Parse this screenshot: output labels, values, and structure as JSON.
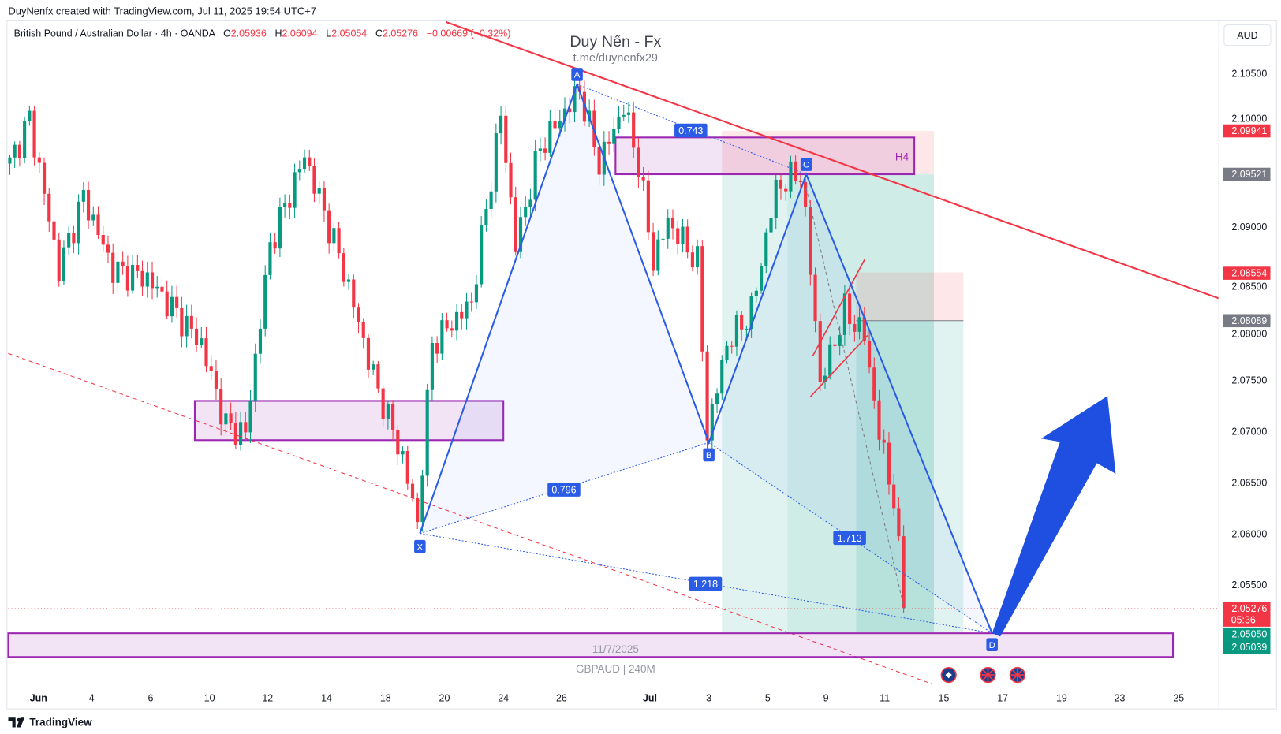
{
  "credit": "DuyNenfx created with TradingView.com, Jul 11, 2025 19:54 UTC+7",
  "legend": {
    "symbol": "British Pound / Australian Dollar · 4h · OANDA",
    "o_label": "O",
    "o": "2.05936",
    "h_label": "H",
    "h": "2.06094",
    "l_label": "L",
    "l": "2.05054",
    "c_label": "C",
    "c": "2.05276",
    "change": "−0.00669 (−0.32%)"
  },
  "currency_button": "AUD",
  "watermark": {
    "title": "Duy Nến - Fx",
    "link": "t.me/duynenfx29",
    "date": "11/7/2025",
    "symbol_tf": "GBPAUD | 240M"
  },
  "zone_labels": {
    "h4": "H4"
  },
  "pattern": {
    "points": {
      "X": "X",
      "A": "A",
      "B": "B",
      "C": "C",
      "D": "D"
    },
    "ratios": {
      "ac": "0.743",
      "xb": "0.796",
      "bd": "1.713",
      "xd": "1.218"
    }
  },
  "price_axis": {
    "ticks": [
      "2.10500",
      "2.10000",
      "2.09000",
      "2.08500",
      "2.08000",
      "2.07500",
      "2.07000",
      "2.06500",
      "2.06000",
      "2.05500"
    ],
    "labels": [
      {
        "value": "2.09941",
        "color": "#f23645"
      },
      {
        "value": "2.09521",
        "color": "#787b86"
      },
      {
        "value": "2.08554",
        "color": "#f23645"
      },
      {
        "value": "2.08089",
        "color": "#787b86"
      },
      {
        "value": "2.05276",
        "sub": "05:36",
        "color": "#f23645"
      },
      {
        "value": "2.05050",
        "color": "#089981"
      },
      {
        "value": "2.05039",
        "color": "#089981"
      }
    ]
  },
  "time_axis": [
    "Jun",
    "4",
    "6",
    "10",
    "12",
    "14",
    "18",
    "20",
    "24",
    "26",
    "Jul",
    "3",
    "5",
    "9",
    "11",
    "15",
    "17",
    "19",
    "23",
    "25"
  ],
  "branding": "TradingView",
  "colors": {
    "up": "#089981",
    "down": "#f23645",
    "pattern": "#2b5ce6",
    "zone": "#9c27b0"
  },
  "chart_data": {
    "type": "candlestick",
    "symbol": "GBPAUD",
    "timeframe": "4h",
    "ylim": [
      2.047,
      2.113
    ],
    "last_close": 2.05276,
    "close_waypoints_bar_price": [
      [
        0,
        2.0962
      ],
      [
        4,
        2.1006
      ],
      [
        10,
        2.0858
      ],
      [
        15,
        2.093
      ],
      [
        21,
        2.0858
      ],
      [
        28,
        2.085
      ],
      [
        39,
        2.0786
      ],
      [
        44,
        2.0706
      ],
      [
        48,
        2.0698
      ],
      [
        53,
        2.0882
      ],
      [
        60,
        2.097
      ],
      [
        68,
        2.0858
      ],
      [
        74,
        2.0754
      ],
      [
        80,
        2.0674
      ],
      [
        83,
        2.061
      ],
      [
        86,
        2.0786
      ],
      [
        94,
        2.0826
      ],
      [
        100,
        2.101
      ],
      [
        103,
        2.0882
      ],
      [
        108,
        2.0978
      ],
      [
        116,
        2.1034
      ],
      [
        120,
        2.0962
      ],
      [
        125,
        2.1018
      ],
      [
        128,
        2.0962
      ],
      [
        131,
        2.0866
      ],
      [
        134,
        2.0906
      ],
      [
        140,
        2.0866
      ],
      [
        142,
        2.0698
      ],
      [
        146,
        2.0786
      ],
      [
        151,
        2.0818
      ],
      [
        156,
        2.0938
      ],
      [
        161,
        2.0954
      ],
      [
        164,
        2.081
      ],
      [
        165,
        2.0746
      ],
      [
        170,
        2.0818
      ],
      [
        174,
        2.0794
      ],
      [
        177,
        2.0698
      ],
      [
        180,
        2.0634
      ],
      [
        182,
        2.05276
      ]
    ]
  }
}
